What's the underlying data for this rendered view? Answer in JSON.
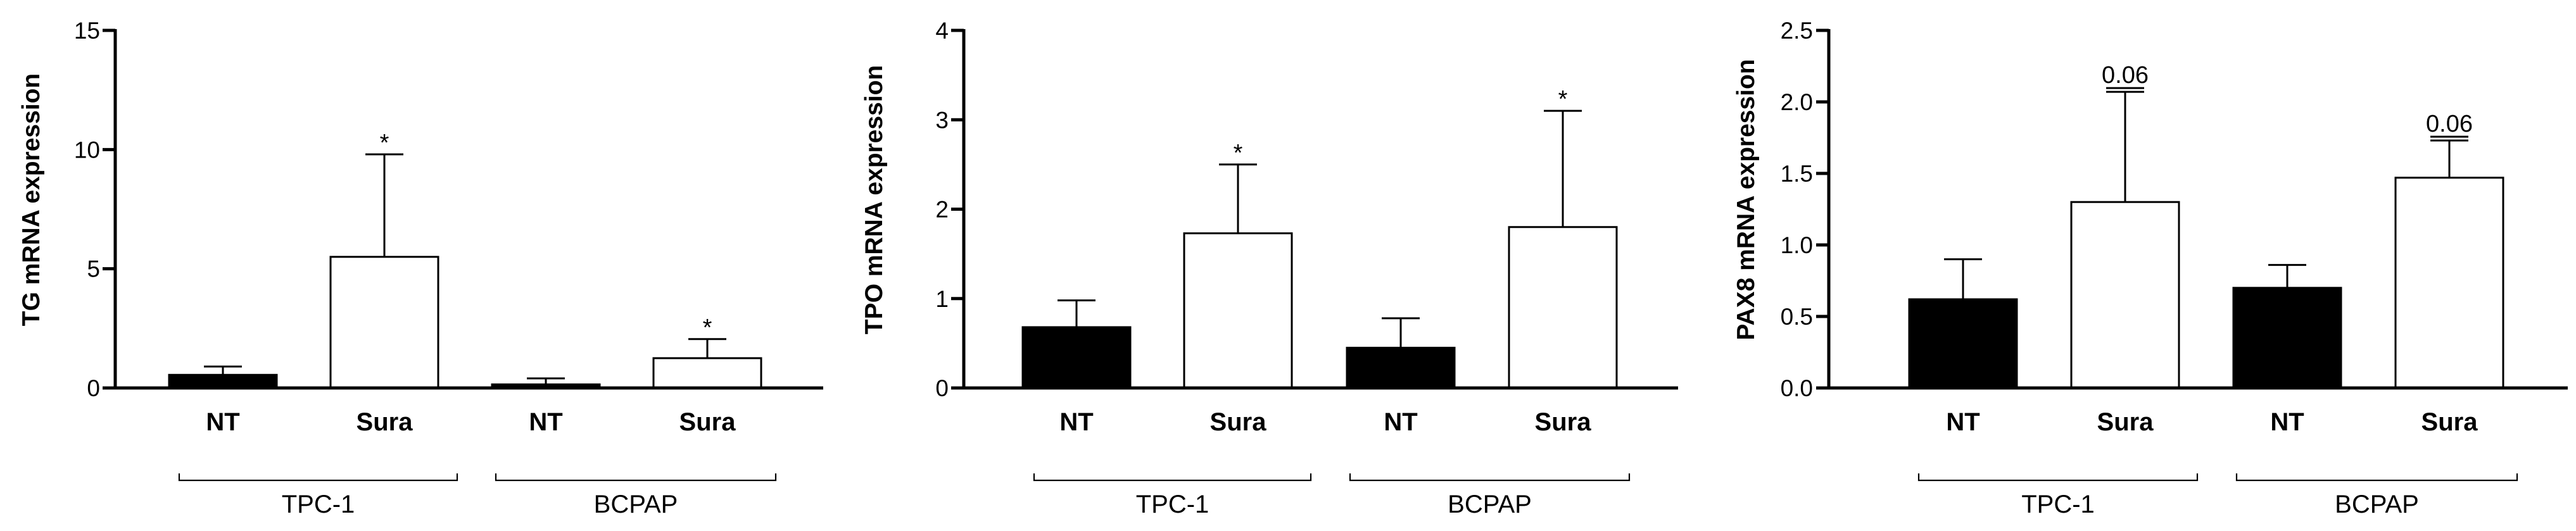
{
  "colors": {
    "filled": "#000000",
    "open": "#ffffff",
    "axis": "#000000"
  },
  "chart_data": [
    {
      "type": "bar",
      "title": "",
      "ylabel": "TG mRNA expression",
      "ylim": [
        0,
        15
      ],
      "yticks": [
        0,
        5,
        10,
        15
      ],
      "ytick_labels": [
        "0",
        "5",
        "10",
        "15"
      ],
      "groups": [
        "TPC-1",
        "BCPAP"
      ],
      "categories": [
        "NT",
        "Sura",
        "NT",
        "Sura"
      ],
      "values": [
        0.55,
        5.5,
        0.15,
        1.25
      ],
      "errors": [
        0.35,
        4.3,
        0.25,
        0.8
      ],
      "fills": [
        "filled",
        "open",
        "filled",
        "open"
      ],
      "annotations": [
        "",
        "*",
        "",
        "*"
      ],
      "annotation_underline": [
        false,
        false,
        false,
        false
      ]
    },
    {
      "type": "bar",
      "title": "",
      "ylabel": "TPO mRNA expression",
      "ylim": [
        0,
        4
      ],
      "yticks": [
        0,
        1,
        2,
        3,
        4
      ],
      "ytick_labels": [
        "0",
        "1",
        "2",
        "3",
        "4"
      ],
      "groups": [
        "TPC-1",
        "BCPAP"
      ],
      "categories": [
        "NT",
        "Sura",
        "NT",
        "Sura"
      ],
      "values": [
        0.68,
        1.73,
        0.45,
        1.8
      ],
      "errors": [
        0.3,
        0.77,
        0.33,
        1.3
      ],
      "fills": [
        "filled",
        "open",
        "filled",
        "open"
      ],
      "annotations": [
        "",
        "*",
        "",
        "*"
      ],
      "annotation_underline": [
        false,
        false,
        false,
        false
      ]
    },
    {
      "type": "bar",
      "title": "",
      "ylabel": "PAX8 mRNA expression",
      "ylim": [
        0,
        2.5
      ],
      "yticks": [
        0,
        0.5,
        1.0,
        1.5,
        2.0,
        2.5
      ],
      "ytick_labels": [
        "0.0",
        "0.5",
        "1.0",
        "1.5",
        "2.0",
        "2.5"
      ],
      "groups": [
        "TPC-1",
        "BCPAP"
      ],
      "categories": [
        "NT",
        "Sura",
        "NT",
        "Sura"
      ],
      "values": [
        0.62,
        1.3,
        0.7,
        1.47
      ],
      "errors": [
        0.28,
        0.77,
        0.16,
        0.26
      ],
      "fills": [
        "filled",
        "open",
        "filled",
        "open"
      ],
      "annotations": [
        "",
        "0.06",
        "",
        "0.06"
      ],
      "annotation_underline": [
        false,
        true,
        false,
        true
      ]
    }
  ]
}
